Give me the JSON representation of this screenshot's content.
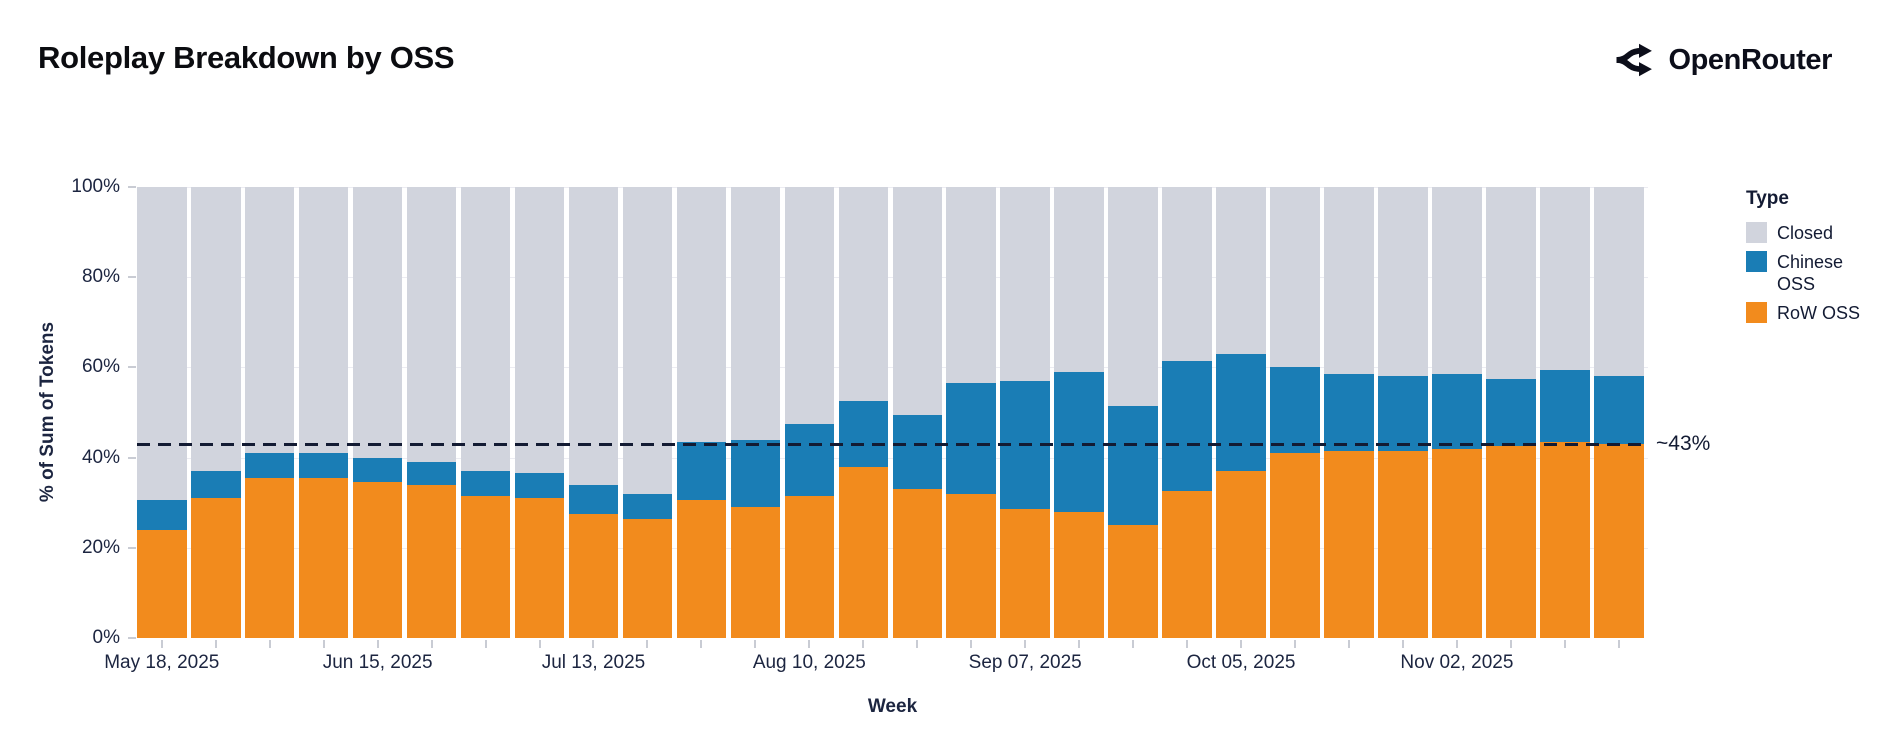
{
  "header": {
    "title": "Roleplay Breakdown by OSS",
    "brand": "OpenRouter"
  },
  "chart_data": {
    "type": "bar",
    "stacked": true,
    "title": "Roleplay Breakdown by OSS",
    "xlabel": "Week",
    "ylabel": "% of Sum of Tokens",
    "ylim": [
      0,
      100
    ],
    "x": [
      "2025-05-18",
      "2025-05-25",
      "2025-06-01",
      "2025-06-08",
      "2025-06-15",
      "2025-06-22",
      "2025-06-29",
      "2025-07-06",
      "2025-07-13",
      "2025-07-20",
      "2025-07-27",
      "2025-08-03",
      "2025-08-10",
      "2025-08-17",
      "2025-08-24",
      "2025-08-31",
      "2025-09-07",
      "2025-09-14",
      "2025-09-21",
      "2025-09-28",
      "2025-10-05",
      "2025-10-12",
      "2025-10-19",
      "2025-10-26",
      "2025-11-02",
      "2025-11-09",
      "2025-11-16",
      "2025-11-23"
    ],
    "series": [
      {
        "name": "RoW OSS",
        "color": "#F28B1D",
        "values": [
          24,
          31,
          35.5,
          35.5,
          34.5,
          34,
          31.5,
          31,
          27.5,
          26.5,
          30.5,
          29,
          31.5,
          38,
          33,
          32,
          28.5,
          28,
          25,
          32.5,
          37,
          41,
          41.5,
          41.5,
          42,
          42.5,
          43.5,
          43
        ]
      },
      {
        "name": "Chinese OSS",
        "color": "#1A7DB5",
        "values": [
          6.5,
          6,
          5.5,
          5.5,
          5.5,
          5,
          5.5,
          5.5,
          6.5,
          5.5,
          13,
          15,
          16,
          14.5,
          16.5,
          24.5,
          28.5,
          31,
          26.5,
          29,
          26,
          19,
          17,
          16.5,
          16.5,
          15,
          16,
          15
        ]
      },
      {
        "name": "Closed",
        "color": "#D1D4DD",
        "values": [
          69.5,
          63,
          59,
          59,
          60,
          61,
          63,
          63.5,
          66,
          68,
          56.5,
          56,
          52.5,
          47.5,
          50.5,
          43.5,
          43,
          41,
          48.5,
          38.5,
          37,
          40,
          41.5,
          42,
          41.5,
          42.5,
          40.5,
          42
        ]
      }
    ],
    "y_tick_labels": [
      "0%",
      "20%",
      "40%",
      "60%",
      "80%",
      "100%"
    ],
    "x_tick_labels": [
      "May 18, 2025",
      "Jun 15, 2025",
      "Jul 13, 2025",
      "Aug 10, 2025",
      "Sep 07, 2025",
      "Oct 05, 2025",
      "Nov 02, 2025"
    ],
    "x_tick_every": 4,
    "reference_line": {
      "label": "~43%",
      "value": 43,
      "color": "#131b33"
    },
    "legend": {
      "title": "Type",
      "entries": [
        {
          "label": "Closed",
          "color": "#D1D4DD"
        },
        {
          "label": "Chinese OSS",
          "color": "#1A7DB5"
        },
        {
          "label": "RoW OSS",
          "color": "#F28B1D"
        }
      ]
    }
  }
}
